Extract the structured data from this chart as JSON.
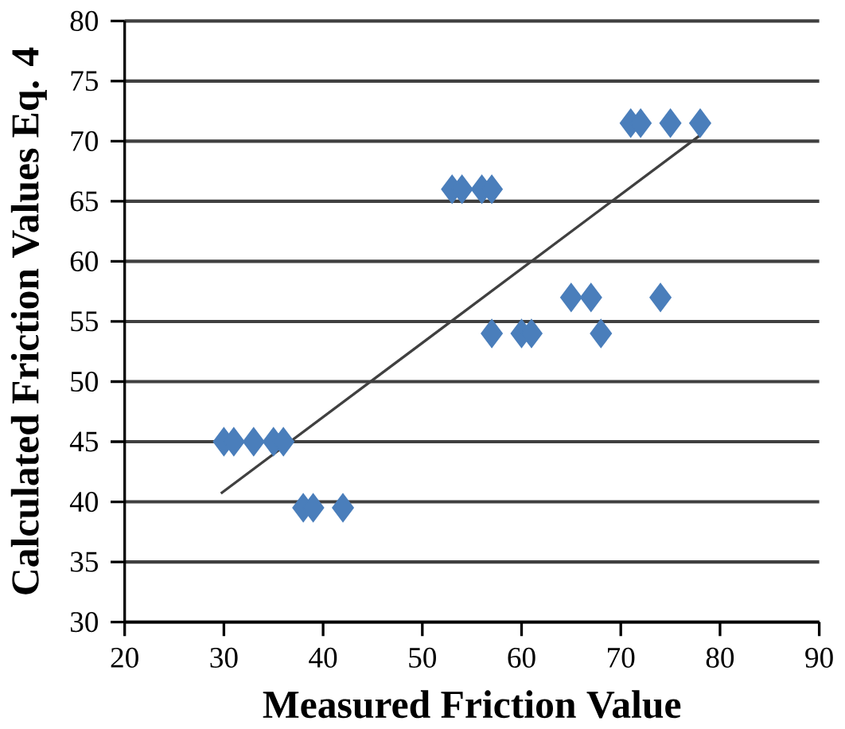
{
  "chart_data": {
    "type": "scatter",
    "xlabel": "Measured Friction Value",
    "ylabel": "Calculated Friction Values Eq. 4",
    "xlim": [
      20,
      90
    ],
    "ylim": [
      30,
      80
    ],
    "xticks": [
      20,
      30,
      40,
      50,
      60,
      70,
      80,
      90
    ],
    "yticks": [
      30,
      35,
      40,
      45,
      50,
      55,
      60,
      65,
      70,
      75,
      80
    ],
    "grid": "y",
    "marker": "diamond",
    "series": [
      {
        "color": "#4a7ebb",
        "x": [
          30,
          31,
          33,
          35,
          36,
          38,
          39,
          42,
          53,
          54,
          56,
          57,
          71,
          72,
          75,
          78,
          57,
          60,
          61,
          68,
          65,
          67,
          74
        ],
        "values": [
          45,
          45,
          45,
          45,
          45,
          39.5,
          39.5,
          39.5,
          66,
          66,
          66,
          66,
          71.5,
          71.5,
          71.5,
          71.5,
          54,
          54,
          54,
          54,
          57,
          57,
          57
        ]
      },
      {
        "type": "line",
        "color": "#404040",
        "marker": "none",
        "x": [
          29.7,
          78
        ],
        "values": [
          40.7,
          70.5
        ]
      }
    ]
  }
}
